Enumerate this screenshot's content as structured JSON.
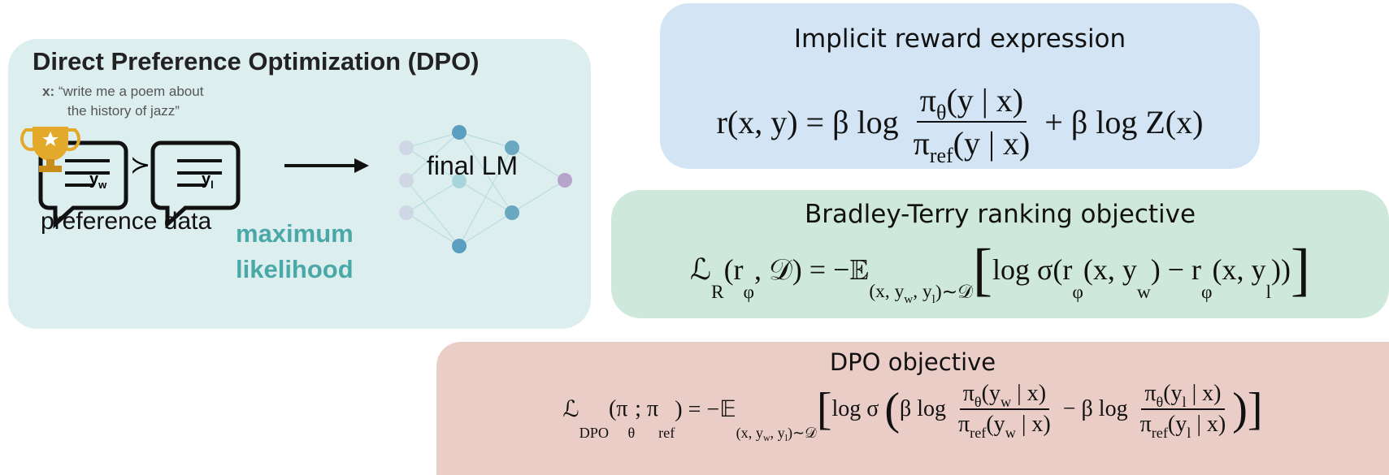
{
  "left_panel": {
    "title": "Direct Preference Optimization (DPO)",
    "prompt_label": "x:",
    "prompt_lines": [
      "“write me a poem about",
      "the history of jazz”"
    ],
    "winner": {
      "base": "y",
      "sub": "w"
    },
    "preference_symbol": "≻",
    "loser": {
      "base": "y",
      "sub": "l"
    },
    "preference_caption": "preference data",
    "method_lines": [
      "maximum",
      "likelihood"
    ],
    "model_label": "final LM"
  },
  "reward_box": {
    "title": "Implicit reward expression",
    "formula": [
      {
        "text": "r(x, y) = β log "
      },
      {
        "frac": {
          "num": [
            {
              "text": "π"
            },
            {
              "sub": [
                {
                  "text": "θ"
                }
              ]
            },
            {
              "text": "(y | x)"
            }
          ],
          "den": [
            {
              "text": "π"
            },
            {
              "sub": [
                {
                  "text": "ref"
                }
              ]
            },
            {
              "text": "(y | x)"
            }
          ]
        }
      },
      {
        "text": " + β log Z(x)"
      }
    ]
  },
  "ranking_box": {
    "title": "Bradley-Terry ranking objective",
    "formula": [
      {
        "text": "ℒ"
      },
      {
        "sub": [
          {
            "text": "R"
          }
        ]
      },
      {
        "text": "(r"
      },
      {
        "sub": [
          {
            "text": "φ"
          }
        ]
      },
      {
        "text": ", 𝒟) = −𝔼"
      },
      {
        "sub": [
          {
            "text": "(x, y"
          },
          {
            "sub": [
              {
                "text": "w"
              }
            ]
          },
          {
            "text": ", y"
          },
          {
            "sub": [
              {
                "text": "l"
              }
            ]
          },
          {
            "text": ")∼𝒟"
          }
        ]
      },
      {
        "big": "["
      },
      {
        "text": "log σ(r"
      },
      {
        "sub": [
          {
            "text": "φ"
          }
        ]
      },
      {
        "text": "(x, y"
      },
      {
        "sub": [
          {
            "text": "w"
          }
        ]
      },
      {
        "text": ") − r"
      },
      {
        "sub": [
          {
            "text": "φ"
          }
        ]
      },
      {
        "text": "(x, y"
      },
      {
        "sub": [
          {
            "text": "l"
          }
        ]
      },
      {
        "text": "))"
      },
      {
        "big": "]"
      }
    ]
  },
  "dpo_box": {
    "title": "DPO objective",
    "formula": [
      {
        "text": "ℒ"
      },
      {
        "sub": [
          {
            "text": "DPO"
          }
        ]
      },
      {
        "text": "(π"
      },
      {
        "sub": [
          {
            "text": "θ"
          }
        ]
      },
      {
        "text": "; π"
      },
      {
        "sub": [
          {
            "text": "ref"
          }
        ]
      },
      {
        "text": ") = −𝔼"
      },
      {
        "sub": [
          {
            "text": "(x, y"
          },
          {
            "sub": [
              {
                "text": "w"
              }
            ]
          },
          {
            "text": ", y"
          },
          {
            "sub": [
              {
                "text": "l"
              }
            ]
          },
          {
            "text": ")∼𝒟"
          }
        ]
      },
      {
        "big": "["
      },
      {
        "text": "log σ "
      },
      {
        "big": "("
      },
      {
        "text": "β log "
      },
      {
        "frac": {
          "num": [
            {
              "text": "π"
            },
            {
              "sub": [
                {
                  "text": "θ"
                }
              ]
            },
            {
              "text": "(y"
            },
            {
              "sub": [
                {
                  "text": "w"
                }
              ]
            },
            {
              "text": " | x)"
            }
          ],
          "den": [
            {
              "text": "π"
            },
            {
              "sub": [
                {
                  "text": "ref"
                }
              ]
            },
            {
              "text": "(y"
            },
            {
              "sub": [
                {
                  "text": "w"
                }
              ]
            },
            {
              "text": " | x)"
            }
          ]
        }
      },
      {
        "text": " − β log "
      },
      {
        "frac": {
          "num": [
            {
              "text": "π"
            },
            {
              "sub": [
                {
                  "text": "θ"
                }
              ]
            },
            {
              "text": "(y"
            },
            {
              "sub": [
                {
                  "text": "l"
                }
              ]
            },
            {
              "text": " | x)"
            }
          ],
          "den": [
            {
              "text": "π"
            },
            {
              "sub": [
                {
                  "text": "ref"
                }
              ]
            },
            {
              "text": "(y"
            },
            {
              "sub": [
                {
                  "text": "l"
                }
              ]
            },
            {
              "text": " | x)"
            }
          ]
        }
      },
      {
        "big": ")"
      },
      {
        "big": "]"
      }
    ]
  }
}
